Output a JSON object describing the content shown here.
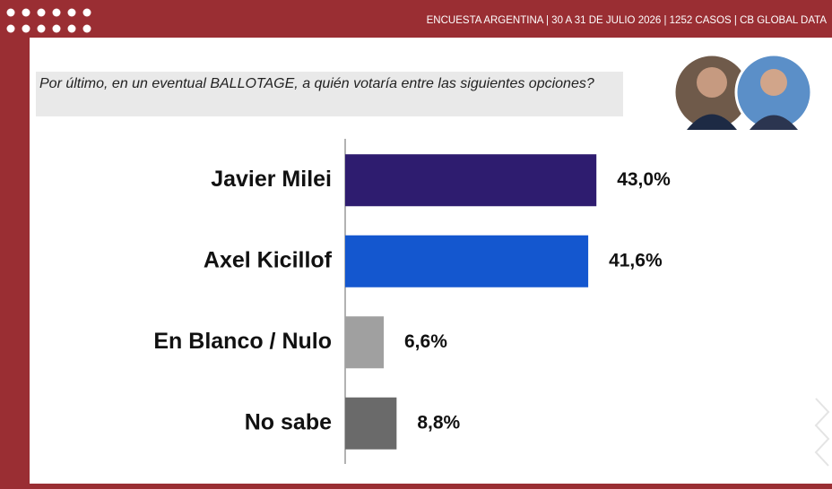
{
  "header": "ENCUESTA ARGENTINA | 30 A 31 DE JULIO 2026 | 1252 CASOS | CB GLOBAL DATA",
  "chart_data": {
    "type": "bar",
    "orientation": "horizontal",
    "title": "Por último, en un eventual BALLOTAGE, a quién votaría entre las siguientes opciones?",
    "categories": [
      "Javier Milei",
      "Axel Kicillof",
      "En Blanco / Nulo",
      "No sabe"
    ],
    "values": [
      43.0,
      41.6,
      6.6,
      8.8
    ],
    "value_labels": [
      "43,0%",
      "41,6%",
      "6,6%",
      "8,8%"
    ],
    "colors": [
      "#2e1c6f",
      "#1457cf",
      "#a0a0a0",
      "#6a6a6a"
    ],
    "xlim": [
      0,
      60
    ]
  }
}
